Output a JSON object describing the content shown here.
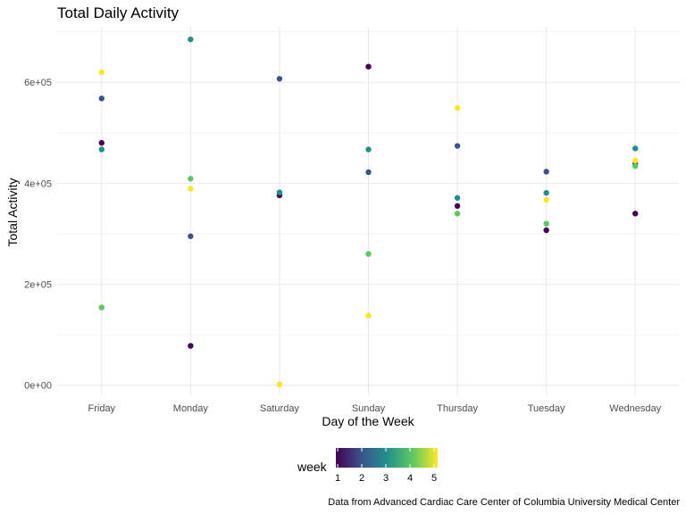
{
  "chart_data": {
    "type": "scatter",
    "title": "Total Daily Activity",
    "xlabel": "Day of the Week",
    "ylabel": "Total Activity",
    "caption": "Data from Advanced Cardiac Care Center of Columbia University Medical Center",
    "categories": [
      "Friday",
      "Monday",
      "Saturday",
      "Sunday",
      "Thursday",
      "Tuesday",
      "Wednesday"
    ],
    "ylim": [
      -20000,
      710000
    ],
    "yticks": [
      {
        "value": 0,
        "label": "0e+00"
      },
      {
        "value": 200000,
        "label": "2e+05"
      },
      {
        "value": 400000,
        "label": "4e+05"
      },
      {
        "value": 600000,
        "label": "6e+05"
      }
    ],
    "grid": true,
    "legend": {
      "title": "week",
      "placement": "bottom",
      "range": [
        1,
        5
      ],
      "ticks": [
        "1",
        "2",
        "3",
        "4",
        "5"
      ],
      "colors": [
        "#440154",
        "#3B528B",
        "#21908C",
        "#5DC863",
        "#FDE725"
      ]
    },
    "points": [
      {
        "day": "Friday",
        "week": 1,
        "value": 480000
      },
      {
        "day": "Friday",
        "week": 2,
        "value": 568000
      },
      {
        "day": "Friday",
        "week": 3,
        "value": 467000
      },
      {
        "day": "Friday",
        "week": 4,
        "value": 154000
      },
      {
        "day": "Friday",
        "week": 5,
        "value": 620000
      },
      {
        "day": "Monday",
        "week": 1,
        "value": 78000
      },
      {
        "day": "Monday",
        "week": 2,
        "value": 295000
      },
      {
        "day": "Monday",
        "week": 3,
        "value": 685000
      },
      {
        "day": "Monday",
        "week": 4,
        "value": 409000
      },
      {
        "day": "Monday",
        "week": 5,
        "value": 389000
      },
      {
        "day": "Saturday",
        "week": 1,
        "value": 376000
      },
      {
        "day": "Saturday",
        "week": 2,
        "value": 607000
      },
      {
        "day": "Saturday",
        "week": 3,
        "value": 382000
      },
      {
        "day": "Saturday",
        "week": 4,
        "value": 1440
      },
      {
        "day": "Saturday",
        "week": 5,
        "value": 1440
      },
      {
        "day": "Sunday",
        "week": 1,
        "value": 631000
      },
      {
        "day": "Sunday",
        "week": 2,
        "value": 422000
      },
      {
        "day": "Sunday",
        "week": 3,
        "value": 467000
      },
      {
        "day": "Sunday",
        "week": 4,
        "value": 260000
      },
      {
        "day": "Sunday",
        "week": 5,
        "value": 138000
      },
      {
        "day": "Thursday",
        "week": 1,
        "value": 355000
      },
      {
        "day": "Thursday",
        "week": 2,
        "value": 474000
      },
      {
        "day": "Thursday",
        "week": 3,
        "value": 371000
      },
      {
        "day": "Thursday",
        "week": 4,
        "value": 340000
      },
      {
        "day": "Thursday",
        "week": 5,
        "value": 549000
      },
      {
        "day": "Tuesday",
        "week": 1,
        "value": 307000
      },
      {
        "day": "Tuesday",
        "week": 2,
        "value": 423000
      },
      {
        "day": "Tuesday",
        "week": 3,
        "value": 381000
      },
      {
        "day": "Tuesday",
        "week": 4,
        "value": 320000
      },
      {
        "day": "Tuesday",
        "week": 5,
        "value": 367000
      },
      {
        "day": "Wednesday",
        "week": 1,
        "value": 340000
      },
      {
        "day": "Wednesday",
        "week": 2,
        "value": 439000
      },
      {
        "day": "Wednesday",
        "week": 3,
        "value": 469000
      },
      {
        "day": "Wednesday",
        "week": 4,
        "value": 434000
      },
      {
        "day": "Wednesday",
        "week": 5,
        "value": 445000
      }
    ]
  }
}
